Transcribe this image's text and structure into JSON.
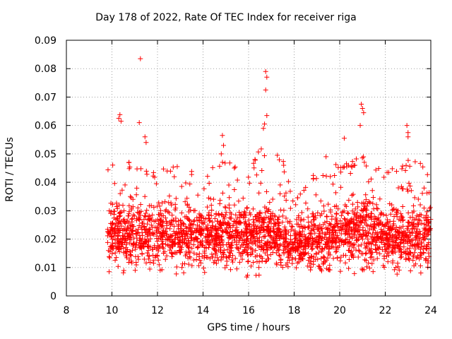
{
  "chart_data": {
    "type": "scatter",
    "title": "Day 178 of 2022, Rate Of TEC Index for receiver riga",
    "xlabel": "GPS time / hours",
    "ylabel": "ROTI / TECUs",
    "xlim": [
      8,
      24
    ],
    "ylim": [
      0,
      0.09
    ],
    "xticks": [
      "8",
      "10",
      "12",
      "14",
      "16",
      "18",
      "20",
      "22",
      "24"
    ],
    "yticks": [
      "0",
      "0.01",
      "0.02",
      "0.03",
      "0.04",
      "0.05",
      "0.06",
      "0.07",
      "0.08",
      "0.09"
    ],
    "grid": true,
    "marker": "+",
    "color": "#ff0000",
    "series": [
      {
        "name": "ROTI",
        "band": {
          "x": [
            9.8,
            10.5,
            11.0,
            12.0,
            13.0,
            14.0,
            15.0,
            16.0,
            16.5,
            17.0,
            17.5,
            18.0,
            18.5,
            19.0,
            19.5,
            20.0,
            20.5,
            21.0,
            21.5,
            22.0,
            22.5,
            23.0,
            23.5,
            24.0
          ],
          "center": [
            0.021,
            0.022,
            0.021,
            0.021,
            0.021,
            0.021,
            0.021,
            0.02,
            0.022,
            0.021,
            0.02,
            0.018,
            0.019,
            0.019,
            0.02,
            0.021,
            0.022,
            0.022,
            0.021,
            0.02,
            0.021,
            0.021,
            0.021,
            0.021
          ],
          "spread": [
            0.01,
            0.011,
            0.01,
            0.01,
            0.01,
            0.009,
            0.01,
            0.009,
            0.011,
            0.01,
            0.008,
            0.007,
            0.008,
            0.008,
            0.009,
            0.009,
            0.01,
            0.01,
            0.009,
            0.009,
            0.01,
            0.01,
            0.01,
            0.01
          ],
          "low": [
            0.008,
            0.008,
            0.007,
            0.008,
            0.007,
            0.008,
            0.007,
            0.006,
            0.007,
            0.008,
            0.009,
            0.009,
            0.009,
            0.008,
            0.008,
            0.007,
            0.008,
            0.007,
            0.008,
            0.008,
            0.007,
            0.007,
            0.007,
            0.007
          ],
          "high": [
            0.046,
            0.05,
            0.045,
            0.045,
            0.046,
            0.044,
            0.048,
            0.044,
            0.052,
            0.052,
            0.05,
            0.033,
            0.04,
            0.044,
            0.045,
            0.047,
            0.048,
            0.05,
            0.046,
            0.044,
            0.046,
            0.048,
            0.047,
            0.044
          ],
          "count": 2600
        },
        "peaks": [
          {
            "x": 10.35,
            "y": 0.0638
          },
          {
            "x": 10.4,
            "y": 0.0615
          },
          {
            "x": 10.3,
            "y": 0.0625
          },
          {
            "x": 11.25,
            "y": 0.0835
          },
          {
            "x": 11.2,
            "y": 0.061
          },
          {
            "x": 11.45,
            "y": 0.056
          },
          {
            "x": 11.5,
            "y": 0.054
          },
          {
            "x": 14.85,
            "y": 0.0565
          },
          {
            "x": 14.9,
            "y": 0.053
          },
          {
            "x": 14.8,
            "y": 0.05
          },
          {
            "x": 16.75,
            "y": 0.079
          },
          {
            "x": 16.8,
            "y": 0.077
          },
          {
            "x": 16.75,
            "y": 0.0725
          },
          {
            "x": 16.7,
            "y": 0.0605
          },
          {
            "x": 16.65,
            "y": 0.059
          },
          {
            "x": 16.8,
            "y": 0.0635
          },
          {
            "x": 20.95,
            "y": 0.0675
          },
          {
            "x": 21.0,
            "y": 0.066
          },
          {
            "x": 21.05,
            "y": 0.0645
          },
          {
            "x": 20.9,
            "y": 0.06
          },
          {
            "x": 19.4,
            "y": 0.049
          },
          {
            "x": 20.2,
            "y": 0.0555
          },
          {
            "x": 22.95,
            "y": 0.06
          },
          {
            "x": 23.0,
            "y": 0.0575
          },
          {
            "x": 23.0,
            "y": 0.056
          }
        ]
      }
    ]
  }
}
